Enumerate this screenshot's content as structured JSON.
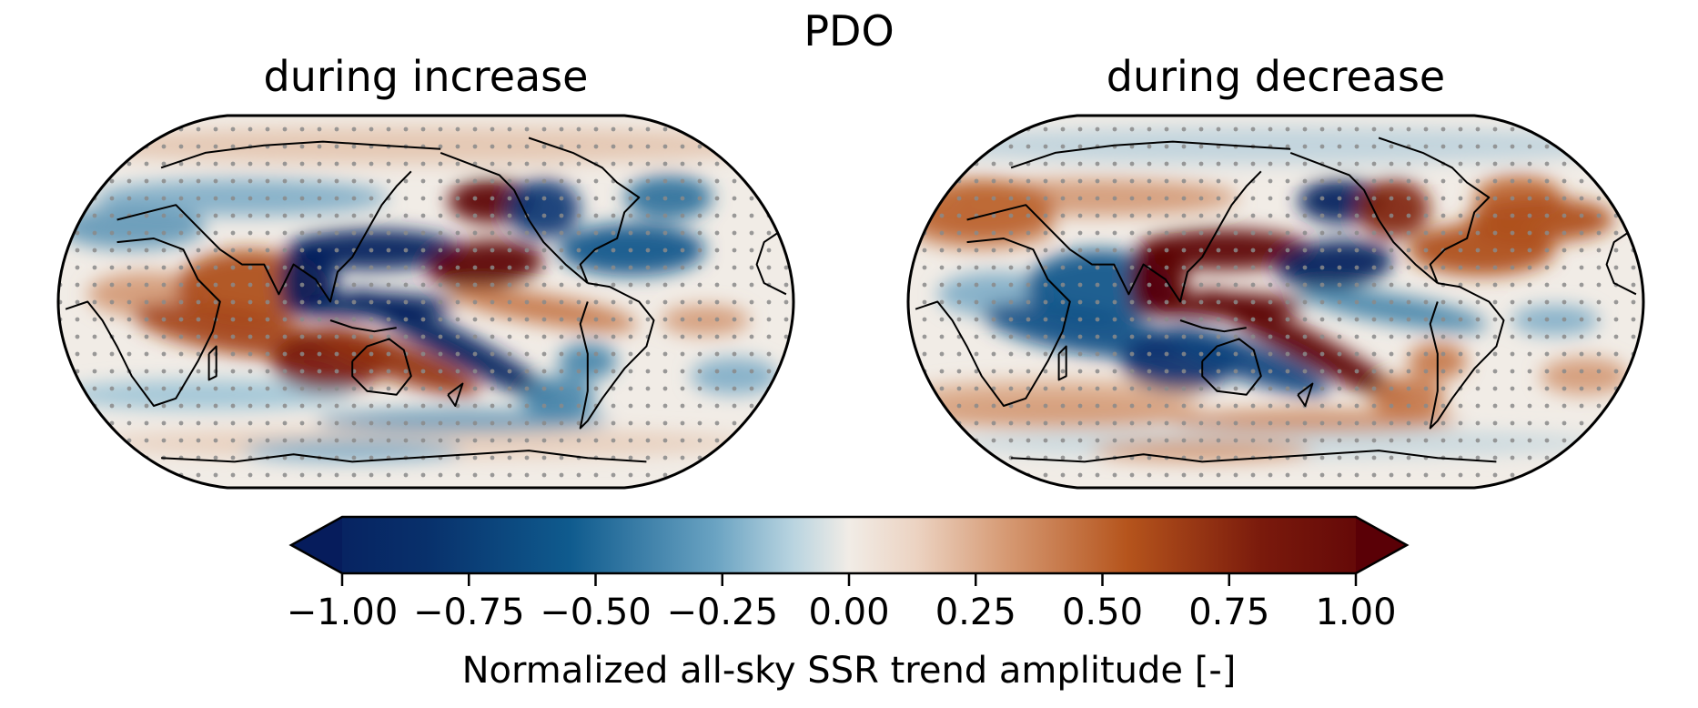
{
  "chart_data": {
    "type": "heatmap",
    "title": "PDO",
    "panels": [
      {
        "title": "during increase",
        "projection": "Robinson (Pacific-centered, ~150E)",
        "description": "Normalized all-sky SSR trend amplitude during PDO increase; strong negative (blue) horseshoe/bands in North and tropical Pacific, strong positive (red) in subtropical NE Pacific and NW Pacific off North America, positive over Maritime Continent/Australia and Indian Ocean; stippling over most of the globe",
        "features": [
          {
            "region": "North Pacific (Kuroshio extension band)",
            "value": -1.0
          },
          {
            "region": "Subtropical NE Pacific (east of Hawaii)",
            "value": 1.0
          },
          {
            "region": "Gulf of Alaska",
            "value": 1.0
          },
          {
            "region": "Central equatorial Pacific (south band)",
            "value": -1.0
          },
          {
            "region": "South Pacific Convergence Zone diagonal",
            "value": -1.0
          },
          {
            "region": "Australia / Maritime Continent",
            "value": 0.8
          },
          {
            "region": "Indian Ocean / South Asia",
            "value": 0.5
          },
          {
            "region": "North Atlantic / eastern North America",
            "value": -0.5
          },
          {
            "region": "Northern South America",
            "value": 0.4
          }
        ]
      },
      {
        "title": "during decrease",
        "projection": "Robinson (Pacific-centered, ~150E)",
        "description": "Approximately reversed pattern: strong positive (red) bands in North and tropical Pacific, negative (blue) in subtropical NE Pacific, Gulf of Alaska and over Maritime Continent/Australia; stippling over most of the globe",
        "features": [
          {
            "region": "North Pacific (Kuroshio extension band)",
            "value": 1.0
          },
          {
            "region": "Subtropical NE Pacific (east of Hawaii)",
            "value": -1.0
          },
          {
            "region": "Gulf of Alaska",
            "value": -1.0
          },
          {
            "region": "Central equatorial Pacific (south band)",
            "value": 1.0
          },
          {
            "region": "South Pacific Convergence Zone diagonal",
            "value": 1.0
          },
          {
            "region": "Australia / Maritime Continent",
            "value": -0.8
          },
          {
            "region": "Indian Ocean / South Asia",
            "value": -0.6
          },
          {
            "region": "North Atlantic / eastern North America",
            "value": 0.5
          },
          {
            "region": "Northern South America",
            "value": -0.5
          }
        ]
      }
    ],
    "colorbar": {
      "label": "Normalized all-sky SSR trend amplitude [-]",
      "range": [
        -1.0,
        1.0
      ],
      "ticks": [
        -1.0,
        -0.75,
        -0.5,
        -0.25,
        0.0,
        0.25,
        0.5,
        0.75,
        1.0
      ],
      "tick_labels": [
        "−1.00",
        "−0.75",
        "−0.50",
        "−0.25",
        "0.00",
        "0.25",
        "0.50",
        "0.75",
        "1.00"
      ],
      "extend": "both",
      "orientation": "horizontal",
      "placement": "bottom-center",
      "colormap": "RdBu-like diverging (blue negative, brown/red positive)",
      "colors": {
        "min": "#061c5c",
        "neg_mid": "#0f5b8e",
        "neg_light": "#9cc3d6",
        "zero": "#f1ece6",
        "pos_light": "#dcac8c",
        "pos_mid": "#b5541c",
        "max": "#5a0006"
      }
    }
  }
}
